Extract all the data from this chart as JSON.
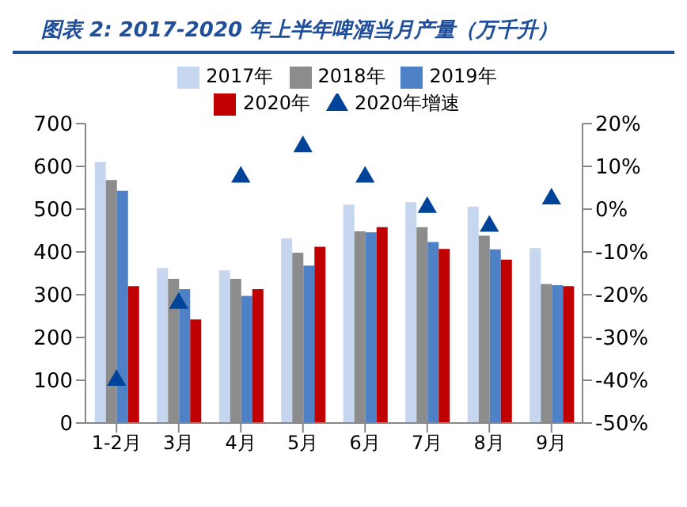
{
  "chart_data": {
    "type": "bar",
    "title": "图表 2:  2017-2020 年上半年啤酒当月产量（万千升）",
    "categories": [
      "1-2月",
      "3月",
      "4月",
      "5月",
      "6月",
      "7月",
      "8月",
      "9月"
    ],
    "series": [
      {
        "name": "2017年",
        "color": "#c6d6ee",
        "values": [
          610,
          362,
          357,
          432,
          510,
          516,
          506,
          409
        ]
      },
      {
        "name": "2018年",
        "color": "#8c8c8c",
        "values": [
          568,
          337,
          337,
          398,
          448,
          458,
          438,
          325
        ]
      },
      {
        "name": "2019年",
        "color": "#4f81c7",
        "values": [
          543,
          313,
          297,
          368,
          446,
          423,
          406,
          322
        ]
      },
      {
        "name": "2020年",
        "color": "#c00000",
        "values": [
          320,
          242,
          313,
          412,
          458,
          407,
          382,
          320
        ]
      },
      {
        "name": "2020年增速",
        "type": "scatter",
        "axis": "y2",
        "marker": "triangle",
        "color": "#00449a",
        "values": [
          -40,
          -22,
          7.5,
          14.6,
          7.5,
          0.4,
          -4,
          2.4
        ]
      }
    ],
    "ylim": [
      0,
      700
    ],
    "yticks": [
      0,
      100,
      200,
      300,
      400,
      500,
      600,
      700
    ],
    "y2lim": [
      -50,
      20
    ],
    "y2ticks": [
      {
        "value": -50,
        "label": "-50%"
      },
      {
        "value": -40,
        "label": "-40%"
      },
      {
        "value": -30,
        "label": "-30%"
      },
      {
        "value": -20,
        "label": "-20%"
      },
      {
        "value": -10,
        "label": "-10%"
      },
      {
        "value": 0,
        "label": "0%"
      },
      {
        "value": 10,
        "label": "10%"
      },
      {
        "value": 20,
        "label": "20%"
      }
    ],
    "legend": "top",
    "grid": false
  }
}
